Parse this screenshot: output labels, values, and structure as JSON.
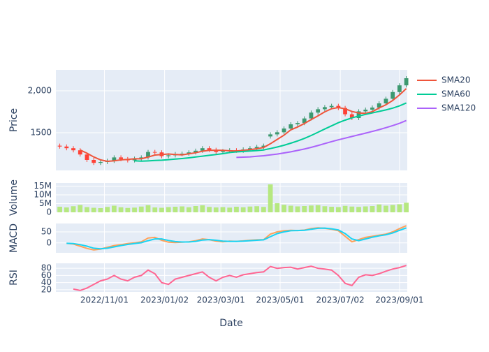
{
  "chart_data": {
    "type": "candlestick",
    "xlabel": "Date",
    "xlim": [
      "2022-09-12",
      "2023-09-09"
    ],
    "xticks": [
      {
        "value": "2022-11-01",
        "label": "2022/11/01"
      },
      {
        "value": "2023-01-02",
        "label": "2023/01/02"
      },
      {
        "value": "2023-03-01",
        "label": "2023/03/01"
      },
      {
        "value": "2023-05-01",
        "label": "2023/05/01"
      },
      {
        "value": "2023-07-02",
        "label": "2023/07/02"
      },
      {
        "value": "2023-09-01",
        "label": "2023/09/01"
      }
    ],
    "x": [
      "2022-09-16",
      "2022-09-23",
      "2022-09-30",
      "2022-10-07",
      "2022-10-14",
      "2022-10-21",
      "2022-10-28",
      "2022-11-04",
      "2022-11-11",
      "2022-11-18",
      "2022-11-25",
      "2022-12-02",
      "2022-12-09",
      "2022-12-16",
      "2022-12-23",
      "2022-12-30",
      "2023-01-06",
      "2023-01-13",
      "2023-01-20",
      "2023-01-27",
      "2023-02-03",
      "2023-02-10",
      "2023-02-17",
      "2023-02-24",
      "2023-03-03",
      "2023-03-10",
      "2023-03-17",
      "2023-03-24",
      "2023-03-31",
      "2023-04-07",
      "2023-04-14",
      "2023-04-21",
      "2023-04-28",
      "2023-05-05",
      "2023-05-12",
      "2023-05-19",
      "2023-05-26",
      "2023-06-02",
      "2023-06-09",
      "2023-06-16",
      "2023-06-23",
      "2023-06-30",
      "2023-07-07",
      "2023-07-14",
      "2023-07-21",
      "2023-07-28",
      "2023-08-04",
      "2023-08-11",
      "2023-08-18",
      "2023-08-25",
      "2023-09-01",
      "2023-09-08"
    ],
    "grid": true,
    "panels": [
      {
        "type": "candlestick",
        "ylabel": "Price",
        "ylim": [
          1050,
          2250
        ],
        "yticks": [
          1500,
          {
            "value": 2000,
            "label": "2,000"
          }
        ],
        "increasing_color": "#3D9970",
        "decreasing_color": "#FF4136",
        "open": [
          1345,
          1335,
          1315,
          1290,
          1240,
          1175,
          1140,
          1150,
          1165,
          1205,
          1185,
          1170,
          1190,
          1205,
          1270,
          1265,
          1220,
          1230,
          1245,
          1250,
          1265,
          1285,
          1315,
          1295,
          1270,
          1280,
          1290,
          1285,
          1300,
          1315,
          1330,
          1455,
          1480,
          1505,
          1550,
          1600,
          1615,
          1670,
          1740,
          1780,
          1805,
          1820,
          1795,
          1720,
          1675,
          1755,
          1775,
          1800,
          1850,
          1905,
          1985,
          2065
        ],
        "high": [
          1370,
          1360,
          1340,
          1315,
          1265,
          1200,
          1175,
          1190,
          1230,
          1230,
          1210,
          1215,
          1230,
          1295,
          1295,
          1290,
          1255,
          1270,
          1275,
          1290,
          1310,
          1340,
          1340,
          1320,
          1305,
          1315,
          1315,
          1325,
          1340,
          1355,
          1370,
          1505,
          1530,
          1575,
          1625,
          1640,
          1695,
          1765,
          1805,
          1830,
          1845,
          1845,
          1820,
          1745,
          1780,
          1800,
          1825,
          1875,
          1930,
          2010,
          2090,
          2175
        ],
        "low": [
          1310,
          1290,
          1265,
          1215,
          1150,
          1115,
          1115,
          1125,
          1140,
          1160,
          1145,
          1145,
          1165,
          1180,
          1240,
          1195,
          1195,
          1205,
          1220,
          1225,
          1240,
          1260,
          1270,
          1245,
          1245,
          1255,
          1260,
          1260,
          1275,
          1290,
          1305,
          1430,
          1455,
          1480,
          1525,
          1575,
          1590,
          1645,
          1715,
          1755,
          1780,
          1770,
          1695,
          1650,
          1650,
          1730,
          1750,
          1775,
          1825,
          1880,
          1960,
          2040
        ],
        "close": [
          1335,
          1315,
          1290,
          1240,
          1175,
          1140,
          1150,
          1165,
          1205,
          1185,
          1170,
          1190,
          1205,
          1270,
          1265,
          1220,
          1230,
          1245,
          1250,
          1265,
          1285,
          1315,
          1295,
          1270,
          1280,
          1290,
          1285,
          1300,
          1315,
          1330,
          1345,
          1480,
          1505,
          1550,
          1600,
          1615,
          1670,
          1740,
          1780,
          1805,
          1820,
          1795,
          1720,
          1675,
          1755,
          1775,
          1800,
          1850,
          1905,
          1985,
          2065,
          2150
        ],
        "series": [
          {
            "name": "SMA20",
            "color": "#EF553B",
            "values": [
              null,
              null,
              null,
              1295,
              1255,
              1211,
              1176,
              1158,
              1165,
              1176,
              1181,
              1188,
              1188,
              1209,
              1233,
              1240,
              1246,
              1240,
              1236,
              1248,
              1261,
              1279,
              1290,
              1291,
              1290,
              1284,
              1281,
              1289,
              1298,
              1308,
              1323,
              1368,
              1420,
              1470,
              1534,
              1568,
              1609,
              1656,
              1701,
              1749,
              1786,
              1800,
              1785,
              1753,
              1736,
              1731,
              1751,
              1795,
              1833,
              1885,
              1951,
              2026
            ]
          },
          {
            "name": "SMA60",
            "color": "#00CC96",
            "values": [
              null,
              null,
              null,
              null,
              null,
              null,
              null,
              null,
              null,
              null,
              null,
              1165,
              1160,
              1163,
              1168,
              1172,
              1178,
              1185,
              1192,
              1200,
              1210,
              1220,
              1230,
              1240,
              1250,
              1263,
              1271,
              1276,
              1282,
              1287,
              1294,
              1311,
              1329,
              1350,
              1375,
              1402,
              1432,
              1467,
              1505,
              1544,
              1582,
              1619,
              1650,
              1677,
              1699,
              1718,
              1736,
              1754,
              1772,
              1793,
              1820,
              1855
            ]
          },
          {
            "name": "SMA120",
            "color": "#AB63FA",
            "values": [
              null,
              null,
              null,
              null,
              null,
              null,
              null,
              null,
              null,
              null,
              null,
              null,
              null,
              null,
              null,
              null,
              null,
              null,
              null,
              null,
              null,
              null,
              null,
              null,
              null,
              null,
              1205,
              1208,
              1212,
              1218,
              1225,
              1235,
              1245,
              1258,
              1272,
              1288,
              1305,
              1325,
              1347,
              1370,
              1393,
              1415,
              1435,
              1455,
              1475,
              1495,
              1515,
              1537,
              1560,
              1585,
              1612,
              1645
            ]
          }
        ]
      },
      {
        "type": "bar",
        "ylabel": "Volume",
        "ylim": [
          0,
          16800000
        ],
        "yticks": [
          0,
          {
            "value": 5000000,
            "label": "5M"
          },
          {
            "value": 10000000,
            "label": "10M"
          },
          {
            "value": 15000000,
            "label": "15M"
          }
        ],
        "color": "#B6E880",
        "values": [
          3200000,
          2800000,
          3500000,
          4200000,
          3000000,
          2600000,
          2400000,
          3100000,
          3800000,
          2900000,
          2500000,
          2700000,
          3300000,
          4100000,
          2800000,
          2600000,
          3000000,
          3200000,
          3400000,
          2900000,
          3600000,
          4000000,
          3100000,
          2800000,
          3000000,
          2700000,
          3200000,
          2900000,
          3300000,
          3500000,
          3100000,
          16000000,
          5200000,
          4300000,
          3800000,
          3400000,
          3600000,
          3900000,
          4100000,
          3500000,
          3200000,
          3000000,
          3700000,
          3300000,
          3100000,
          3400000,
          3600000,
          4500000,
          3800000,
          4200000,
          4600000,
          5500000
        ]
      },
      {
        "type": "line",
        "ylabel": "MACD",
        "ylim": [
          -45,
          88
        ],
        "yticks": [
          0,
          50
        ],
        "series": [
          {
            "color": "#FFA15A",
            "values": [
              null,
              -2,
              -5,
              -15,
              -25,
              -32,
              -28,
              -20,
              -12,
              -8,
              -3,
              0,
              5,
              22,
              25,
              12,
              3,
              2,
              3,
              5,
              10,
              18,
              15,
              8,
              5,
              8,
              7,
              9,
              12,
              14,
              15,
              40,
              50,
              55,
              57,
              56,
              58,
              65,
              68,
              66,
              62,
              55,
              30,
              5,
              15,
              25,
              30,
              35,
              40,
              50,
              65,
              78
            ]
          },
          {
            "color": "#19D3F3",
            "values": [
              null,
              -2,
              -3,
              -8,
              -15,
              -24,
              -27,
              -24,
              -18,
              -12,
              -7,
              -3,
              1,
              10,
              18,
              18,
              11,
              6,
              4,
              4,
              7,
              13,
              15,
              12,
              8,
              7,
              7,
              8,
              10,
              12,
              14,
              28,
              42,
              50,
              55,
              56,
              57,
              62,
              66,
              67,
              64,
              59,
              42,
              18,
              10,
              18,
              26,
              32,
              37,
              45,
              57,
              68
            ]
          }
        ]
      },
      {
        "type": "line",
        "ylabel": "RSI",
        "ylim": [
          14,
          94
        ],
        "yticks": [
          20,
          40,
          60,
          80
        ],
        "series": [
          {
            "color": "#FF6692",
            "values": [
              null,
              null,
              22,
              18,
              25,
              35,
              45,
              50,
              60,
              50,
              45,
              55,
              60,
              75,
              65,
              40,
              35,
              50,
              55,
              60,
              65,
              70,
              55,
              45,
              55,
              60,
              55,
              62,
              65,
              68,
              70,
              85,
              80,
              82,
              83,
              78,
              82,
              86,
              80,
              78,
              75,
              60,
              38,
              32,
              55,
              62,
              60,
              65,
              72,
              78,
              82,
              88
            ]
          }
        ]
      }
    ]
  }
}
